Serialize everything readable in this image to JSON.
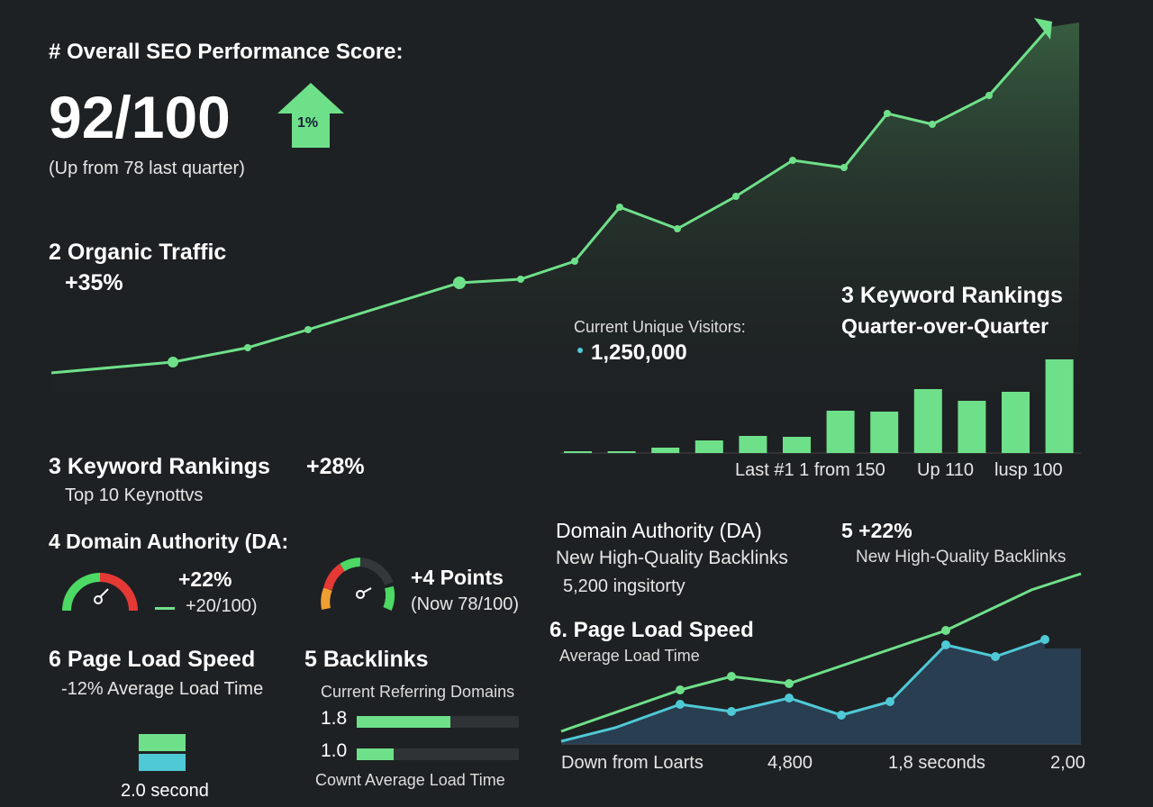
{
  "colors": {
    "background": "#1e2123",
    "green": "#6fe08a",
    "teal": "#4fc9d6",
    "red": "#e53935",
    "orange": "#f0a030",
    "area_blue": "#2b4358"
  },
  "score": {
    "title": "# Overall SEO Performance Score:",
    "value": "92/100",
    "badge": "1%",
    "sub": "(Up from 78 last quarter)"
  },
  "traffic": {
    "title": "2  Organic Traffic",
    "change": "+35%",
    "visitors_label": "Current Unique Visitors:",
    "visitors_value": "1,250,000"
  },
  "kw_right": {
    "title": "3  Keyword Rankings",
    "subtitle": "Quarter-over-Quarter",
    "axis_labels": [
      "Last #1 1 from  150",
      "Up  110",
      "lusp  100"
    ]
  },
  "kw_left": {
    "title": "3  Keyword Rankings",
    "change": "+28%",
    "sub": "Top 10 Keynottvs"
  },
  "da": {
    "title": "4  Domain Authority (DA:",
    "g1_change": "+22%",
    "g1_sub": "+20/100)",
    "g2_change": "+4 Points",
    "g2_sub": "(Now 78/100)"
  },
  "speed_left": {
    "title": "6  Page Load Speed",
    "sub": "-12% Average Load Time",
    "value": "2.0 second"
  },
  "backlinks": {
    "title": "5  Backlinks",
    "sub": "Current Referring Domains",
    "bars": [
      {
        "label": "1.8",
        "fill": 0.58
      },
      {
        "label": "1.0",
        "fill": 0.23
      }
    ],
    "footer": "Cownt Average Load Time"
  },
  "da_right": {
    "title": "Domain Authority (DA)",
    "sub": "New High-Quality Backlinks",
    "value": "5,200 ingsitorty",
    "title2": "5 +22%",
    "sub2": "New High-Quality Backlinks"
  },
  "speed_right": {
    "title": "6. Page Load Speed",
    "sub": "Average Load Time",
    "axis_labels": [
      "Down from Loarts",
      "4,800",
      "1,8 seconds",
      "2,00"
    ]
  },
  "chart_data": [
    {
      "type": "area",
      "name": "organic-traffic",
      "values": [
        4,
        7,
        11,
        16,
        29,
        30,
        35,
        50,
        44,
        53,
        63,
        61,
        76,
        73,
        81,
        100
      ]
    },
    {
      "type": "bar",
      "name": "keyword-rankings",
      "values": [
        2,
        2,
        6,
        14,
        19,
        18,
        47,
        46,
        71,
        58,
        68,
        104
      ]
    },
    {
      "type": "line",
      "name": "page-load",
      "series": [
        {
          "color": "#6fe08a",
          "x": [
            0,
            132,
            189,
            253,
            427,
            522,
            577
          ],
          "values": [
            14,
            60,
            75,
            67,
            126,
            171,
            189
          ]
        },
        {
          "color": "#4fc9d6",
          "x": [
            0,
            60,
            132,
            189,
            253,
            311,
            365,
            427,
            482,
            537
          ],
          "values": [
            3,
            18,
            44,
            36,
            51,
            32,
            47,
            110,
            97,
            116
          ]
        }
      ]
    }
  ]
}
